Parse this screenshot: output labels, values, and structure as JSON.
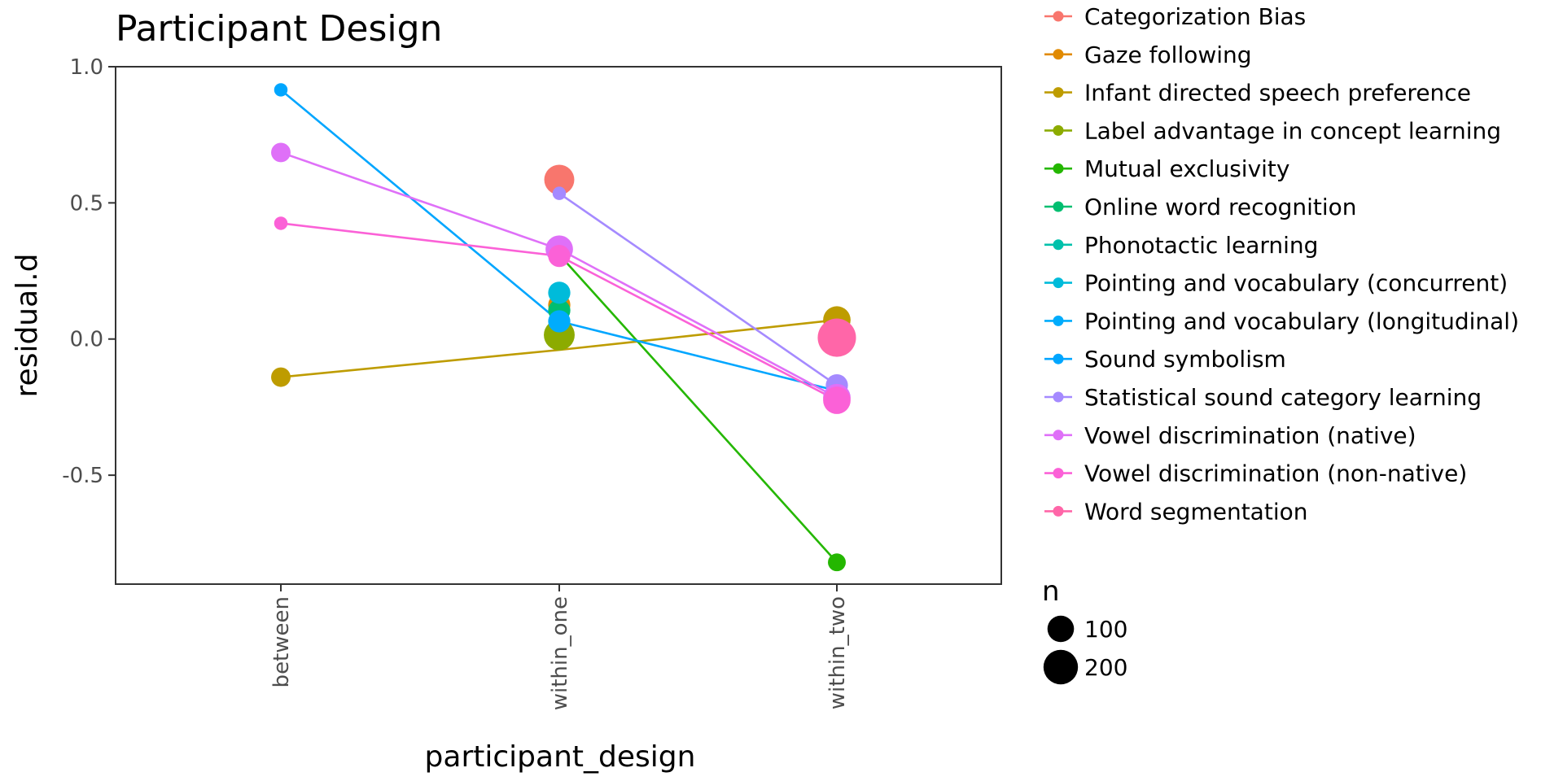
{
  "chart_data": {
    "type": "scatter",
    "title": "Participant Design",
    "xlabel": "participant_design",
    "ylabel": "residual.d",
    "categories": [
      "between",
      "within_one",
      "within_two"
    ],
    "ylim": [
      -0.9,
      1.0
    ],
    "yticks": [
      1.0,
      0.5,
      0.0,
      -0.5
    ],
    "ytick_labels": [
      "1.0",
      "0.5",
      "0.0",
      "-0.5"
    ],
    "grid": false,
    "legend_position": "right",
    "series": [
      {
        "name": "Categorization Bias",
        "color": "#F8766D",
        "points": [
          {
            "x": "within_one",
            "y": 0.585,
            "n": 140
          }
        ]
      },
      {
        "name": "Gaze following",
        "color": "#E18A00",
        "points": [
          {
            "x": "within_one",
            "y": 0.125,
            "n": 60
          }
        ]
      },
      {
        "name": "Infant directed speech preference",
        "color": "#BE9C00",
        "points": [
          {
            "x": "between",
            "y": -0.14,
            "n": 40
          },
          {
            "x": "within_one",
            "y": -0.04,
            "n": 0
          },
          {
            "x": "within_two",
            "y": 0.07,
            "n": 110
          }
        ]
      },
      {
        "name": "Label advantage in concept learning",
        "color": "#8CAB00",
        "points": [
          {
            "x": "within_one",
            "y": 0.015,
            "n": 150
          }
        ]
      },
      {
        "name": "Mutual exclusivity",
        "color": "#24B700",
        "points": [
          {
            "x": "within_one",
            "y": 0.31,
            "n": 0
          },
          {
            "x": "within_two",
            "y": -0.82,
            "n": 30
          }
        ]
      },
      {
        "name": "Online word recognition",
        "color": "#00BE70",
        "points": [
          {
            "x": "within_one",
            "y": 0.105,
            "n": 60
          }
        ]
      },
      {
        "name": "Phonotactic learning",
        "color": "#00C1AB",
        "points": []
      },
      {
        "name": "Pointing and vocabulary (concurrent)",
        "color": "#00BBDA",
        "points": [
          {
            "x": "within_one",
            "y": 0.17,
            "n": 60
          }
        ]
      },
      {
        "name": "Pointing and vocabulary (longitudinal)",
        "color": "#00ACFC",
        "points": [
          {
            "x": "within_one",
            "y": 0.065,
            "n": 60
          }
        ]
      },
      {
        "name": "Sound symbolism",
        "color": "#00A6FF",
        "points": [
          {
            "x": "between",
            "y": 0.915,
            "n": 10
          },
          {
            "x": "within_one",
            "y": 0.065,
            "n": 0
          },
          {
            "x": "within_two",
            "y": -0.19,
            "n": 0
          }
        ]
      },
      {
        "name": "Statistical sound category learning",
        "color": "#A58AFF",
        "points": [
          {
            "x": "within_one",
            "y": 0.535,
            "n": 10
          },
          {
            "x": "within_two",
            "y": -0.17,
            "n": 60
          }
        ]
      },
      {
        "name": "Vowel discrimination (native)",
        "color": "#DF70F8",
        "points": [
          {
            "x": "between",
            "y": 0.685,
            "n": 40
          },
          {
            "x": "within_one",
            "y": 0.33,
            "n": 110
          },
          {
            "x": "within_two",
            "y": -0.215,
            "n": 110
          }
        ]
      },
      {
        "name": "Vowel discrimination (non-native)",
        "color": "#FB61D7",
        "points": [
          {
            "x": "between",
            "y": 0.425,
            "n": 10
          },
          {
            "x": "within_one",
            "y": 0.305,
            "n": 60
          },
          {
            "x": "within_two",
            "y": -0.225,
            "n": 110
          }
        ]
      },
      {
        "name": "Word segmentation",
        "color": "#FF66A8",
        "points": [
          {
            "x": "within_two",
            "y": 0.005,
            "n": 260
          }
        ]
      }
    ],
    "size_legend": {
      "title": "n",
      "entries": [
        {
          "label": "100",
          "n": 100
        },
        {
          "label": "200",
          "n": 200
        }
      ]
    }
  }
}
